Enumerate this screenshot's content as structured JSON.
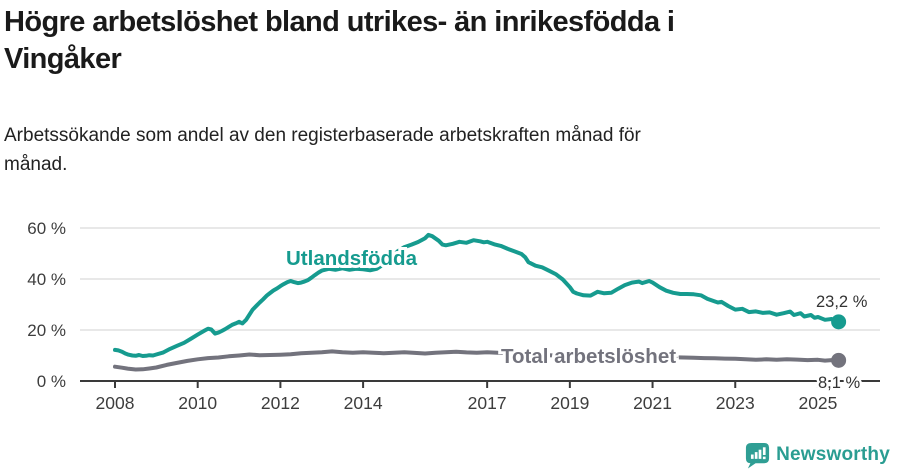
{
  "title": {
    "line1": "Högre arbetslöshet bland utrikes- än inrikesfödda i",
    "line2": "Vingåker"
  },
  "subtitle": {
    "line1": "Arbetssökande som andel av den registerbaserade arbetskraften månad för",
    "line2": "månad."
  },
  "footer": {
    "brand": "Newsworthy"
  },
  "colors": {
    "accent_teal": "#169B8F",
    "gray_series": "#73737D",
    "axis_line": "#3a3a3a",
    "grid_line": "#d9d9d9",
    "axis_text": "#3d3d3d",
    "value_text": "#333333",
    "logo_teal": "#2F9E94"
  },
  "chart_data": {
    "type": "line",
    "unit": "%",
    "grid": true,
    "legend_position": "inline-labels",
    "x_axis": {
      "tick_years": [
        2008,
        2010,
        2012,
        2014,
        2017,
        2019,
        2021,
        2023,
        2025
      ],
      "tick_labels": [
        "2008",
        "2010",
        "2012",
        "2014",
        "2017",
        "2019",
        "2021",
        "2023",
        "2025"
      ],
      "range": [
        2008,
        2025.5
      ]
    },
    "y_axis": {
      "tick_values": [
        0,
        20,
        40,
        60
      ],
      "tick_labels": [
        "0 %",
        "20 %",
        "40 %",
        "60 %"
      ],
      "range": [
        0,
        62
      ]
    },
    "series": [
      {
        "name": "Utlandsfödda",
        "color": "#169B8F",
        "end_value": 23.2,
        "end_label": "23,2 %",
        "points": [
          [
            2008.0,
            12.2
          ],
          [
            2008.08,
            12.0
          ],
          [
            2008.17,
            11.5
          ],
          [
            2008.25,
            10.8
          ],
          [
            2008.33,
            10.3
          ],
          [
            2008.42,
            10.0
          ],
          [
            2008.5,
            9.9
          ],
          [
            2008.58,
            10.2
          ],
          [
            2008.67,
            9.8
          ],
          [
            2008.75,
            9.9
          ],
          [
            2008.83,
            10.1
          ],
          [
            2008.92,
            10.0
          ],
          [
            2009.0,
            10.4
          ],
          [
            2009.17,
            11.2
          ],
          [
            2009.33,
            12.6
          ],
          [
            2009.5,
            13.8
          ],
          [
            2009.67,
            15.0
          ],
          [
            2009.83,
            16.5
          ],
          [
            2010.0,
            18.2
          ],
          [
            2010.17,
            19.8
          ],
          [
            2010.25,
            20.5
          ],
          [
            2010.33,
            20.2
          ],
          [
            2010.42,
            18.6
          ],
          [
            2010.5,
            19.0
          ],
          [
            2010.58,
            19.6
          ],
          [
            2010.67,
            20.4
          ],
          [
            2010.75,
            21.2
          ],
          [
            2010.83,
            22.0
          ],
          [
            2010.92,
            22.6
          ],
          [
            2011.0,
            23.2
          ],
          [
            2011.08,
            22.6
          ],
          [
            2011.17,
            24.0
          ],
          [
            2011.25,
            26.0
          ],
          [
            2011.33,
            28.0
          ],
          [
            2011.42,
            29.5
          ],
          [
            2011.5,
            30.8
          ],
          [
            2011.58,
            32.0
          ],
          [
            2011.67,
            33.5
          ],
          [
            2011.75,
            34.5
          ],
          [
            2011.83,
            35.5
          ],
          [
            2011.92,
            36.3
          ],
          [
            2012.0,
            37.2
          ],
          [
            2012.08,
            38.0
          ],
          [
            2012.17,
            38.8
          ],
          [
            2012.25,
            39.2
          ],
          [
            2012.33,
            38.8
          ],
          [
            2012.42,
            38.4
          ],
          [
            2012.5,
            38.6
          ],
          [
            2012.58,
            39.0
          ],
          [
            2012.67,
            39.6
          ],
          [
            2012.75,
            40.5
          ],
          [
            2012.83,
            41.5
          ],
          [
            2012.92,
            42.5
          ],
          [
            2013.0,
            43.3
          ],
          [
            2013.17,
            44.0
          ],
          [
            2013.33,
            43.6
          ],
          [
            2013.5,
            44.2
          ],
          [
            2013.67,
            43.6
          ],
          [
            2013.83,
            44.0
          ],
          [
            2014.0,
            43.8
          ],
          [
            2014.17,
            43.4
          ],
          [
            2014.33,
            44.0
          ],
          [
            2014.5,
            45.8
          ],
          [
            2014.67,
            48.0
          ],
          [
            2014.83,
            50.8
          ],
          [
            2015.0,
            52.5
          ],
          [
            2015.17,
            53.5
          ],
          [
            2015.33,
            54.5
          ],
          [
            2015.5,
            56.0
          ],
          [
            2015.58,
            57.3
          ],
          [
            2015.67,
            56.8
          ],
          [
            2015.83,
            55.0
          ],
          [
            2015.92,
            53.5
          ],
          [
            2016.0,
            53.2
          ],
          [
            2016.17,
            53.8
          ],
          [
            2016.33,
            54.6
          ],
          [
            2016.5,
            54.2
          ],
          [
            2016.67,
            55.2
          ],
          [
            2016.83,
            54.8
          ],
          [
            2016.92,
            54.4
          ],
          [
            2017.0,
            54.6
          ],
          [
            2017.17,
            53.6
          ],
          [
            2017.33,
            53.0
          ],
          [
            2017.5,
            51.8
          ],
          [
            2017.67,
            50.8
          ],
          [
            2017.83,
            49.8
          ],
          [
            2017.92,
            48.5
          ],
          [
            2018.0,
            46.6
          ],
          [
            2018.17,
            45.2
          ],
          [
            2018.33,
            44.6
          ],
          [
            2018.5,
            43.2
          ],
          [
            2018.67,
            41.8
          ],
          [
            2018.83,
            39.8
          ],
          [
            2019.0,
            36.8
          ],
          [
            2019.08,
            35.0
          ],
          [
            2019.17,
            34.3
          ],
          [
            2019.33,
            33.6
          ],
          [
            2019.5,
            33.5
          ],
          [
            2019.67,
            35.0
          ],
          [
            2019.83,
            34.4
          ],
          [
            2020.0,
            34.6
          ],
          [
            2020.17,
            36.2
          ],
          [
            2020.33,
            37.6
          ],
          [
            2020.5,
            38.6
          ],
          [
            2020.67,
            39.0
          ],
          [
            2020.75,
            38.4
          ],
          [
            2020.92,
            39.2
          ],
          [
            2021.0,
            38.6
          ],
          [
            2021.17,
            36.8
          ],
          [
            2021.33,
            35.4
          ],
          [
            2021.5,
            34.6
          ],
          [
            2021.67,
            34.1
          ],
          [
            2021.83,
            34.1
          ],
          [
            2022.0,
            34.0
          ],
          [
            2022.17,
            33.6
          ],
          [
            2022.33,
            32.2
          ],
          [
            2022.5,
            31.2
          ],
          [
            2022.58,
            30.8
          ],
          [
            2022.67,
            31.0
          ],
          [
            2022.83,
            29.4
          ],
          [
            2023.0,
            28.0
          ],
          [
            2023.17,
            28.3
          ],
          [
            2023.33,
            27.0
          ],
          [
            2023.5,
            27.3
          ],
          [
            2023.67,
            26.7
          ],
          [
            2023.83,
            26.9
          ],
          [
            2024.0,
            26.0
          ],
          [
            2024.17,
            26.6
          ],
          [
            2024.33,
            27.2
          ],
          [
            2024.42,
            25.9
          ],
          [
            2024.58,
            26.6
          ],
          [
            2024.67,
            25.3
          ],
          [
            2024.83,
            25.9
          ],
          [
            2024.92,
            24.8
          ],
          [
            2025.0,
            25.1
          ],
          [
            2025.17,
            24.0
          ],
          [
            2025.33,
            24.3
          ],
          [
            2025.42,
            23.4
          ],
          [
            2025.5,
            23.2
          ]
        ]
      },
      {
        "name": "Total arbetslöshet",
        "color": "#73737D",
        "end_value": 8.1,
        "end_label": "8,1 %",
        "points": [
          [
            2008.0,
            5.6
          ],
          [
            2008.17,
            5.2
          ],
          [
            2008.33,
            4.8
          ],
          [
            2008.5,
            4.5
          ],
          [
            2008.67,
            4.6
          ],
          [
            2008.83,
            4.9
          ],
          [
            2009.0,
            5.3
          ],
          [
            2009.25,
            6.3
          ],
          [
            2009.5,
            7.1
          ],
          [
            2009.75,
            7.9
          ],
          [
            2010.0,
            8.5
          ],
          [
            2010.25,
            9.0
          ],
          [
            2010.5,
            9.2
          ],
          [
            2010.75,
            9.7
          ],
          [
            2011.0,
            10.0
          ],
          [
            2011.25,
            10.4
          ],
          [
            2011.5,
            10.1
          ],
          [
            2011.75,
            10.2
          ],
          [
            2012.0,
            10.3
          ],
          [
            2012.25,
            10.5
          ],
          [
            2012.5,
            10.9
          ],
          [
            2012.75,
            11.1
          ],
          [
            2013.0,
            11.3
          ],
          [
            2013.25,
            11.6
          ],
          [
            2013.5,
            11.3
          ],
          [
            2013.75,
            11.1
          ],
          [
            2014.0,
            11.3
          ],
          [
            2014.25,
            11.1
          ],
          [
            2014.5,
            10.9
          ],
          [
            2014.75,
            11.1
          ],
          [
            2015.0,
            11.3
          ],
          [
            2015.25,
            11.0
          ],
          [
            2015.5,
            10.8
          ],
          [
            2015.75,
            11.1
          ],
          [
            2016.0,
            11.3
          ],
          [
            2016.25,
            11.5
          ],
          [
            2016.5,
            11.2
          ],
          [
            2016.75,
            11.1
          ],
          [
            2017.0,
            11.3
          ],
          [
            2017.25,
            11.1
          ],
          [
            2017.5,
            10.9
          ],
          [
            2017.75,
            10.7
          ],
          [
            2018.0,
            10.5
          ],
          [
            2018.25,
            10.3
          ],
          [
            2018.5,
            10.1
          ],
          [
            2018.75,
            9.9
          ],
          [
            2019.0,
            9.7
          ],
          [
            2019.25,
            9.6
          ],
          [
            2019.5,
            9.5
          ],
          [
            2019.75,
            9.4
          ],
          [
            2020.0,
            9.5
          ],
          [
            2020.25,
            9.7
          ],
          [
            2020.5,
            9.9
          ],
          [
            2020.75,
            9.8
          ],
          [
            2021.0,
            9.7
          ],
          [
            2021.25,
            9.5
          ],
          [
            2021.5,
            9.3
          ],
          [
            2021.75,
            9.2
          ],
          [
            2022.0,
            9.1
          ],
          [
            2022.25,
            9.0
          ],
          [
            2022.5,
            8.9
          ],
          [
            2022.75,
            8.8
          ],
          [
            2023.0,
            8.7
          ],
          [
            2023.25,
            8.5
          ],
          [
            2023.5,
            8.3
          ],
          [
            2023.75,
            8.5
          ],
          [
            2024.0,
            8.3
          ],
          [
            2024.25,
            8.5
          ],
          [
            2024.5,
            8.4
          ],
          [
            2024.75,
            8.2
          ],
          [
            2025.0,
            8.3
          ],
          [
            2025.17,
            8.0
          ],
          [
            2025.33,
            8.2
          ],
          [
            2025.5,
            8.1
          ]
        ]
      }
    ]
  }
}
